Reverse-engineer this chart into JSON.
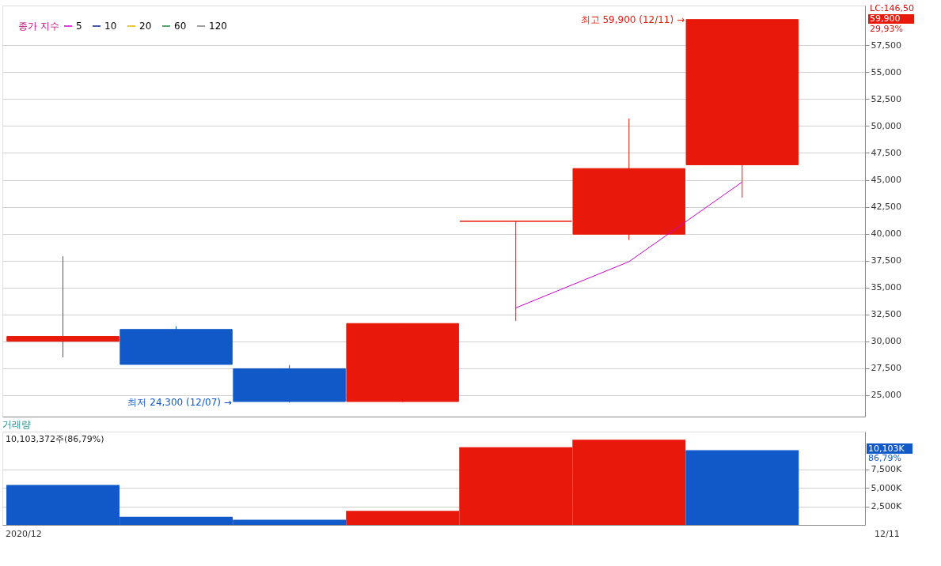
{
  "chart_data": [
    {
      "type": "candlestick",
      "categories": [
        null,
        null,
        null,
        null,
        null,
        null,
        null
      ],
      "ohlc": [
        [
          30000,
          37900,
          28500,
          30450
        ],
        [
          31100,
          31400,
          27850,
          27850
        ],
        [
          27450,
          27800,
          24300,
          24400
        ],
        [
          24400,
          31650,
          24350,
          31650
        ],
        [
          41150,
          41150,
          31900,
          41150
        ],
        [
          39950,
          50700,
          39400,
          46050
        ],
        [
          46400,
          59900,
          43350,
          59900
        ]
      ],
      "colors": [
        "#e8190a",
        "#1159c8",
        "#1159c8",
        "#e8190a",
        "#e8190a",
        "#e8190a",
        "#e8190a"
      ],
      "legend_title": "종가 지수",
      "series": [
        {
          "name": "5",
          "type": "line",
          "color": "#cc00cc",
          "values": [
            null,
            null,
            null,
            null,
            33100,
            37400,
            44800
          ]
        },
        {
          "name": "10",
          "type": "line",
          "color": "#0b1f8a",
          "values": [
            null,
            null,
            null,
            null,
            null,
            null,
            null
          ]
        },
        {
          "name": "20",
          "type": "line",
          "color": "#e0b000",
          "values": [
            null,
            null,
            null,
            null,
            null,
            null,
            null
          ]
        },
        {
          "name": "60",
          "type": "line",
          "color": "#1a8a3a",
          "values": [
            null,
            null,
            null,
            null,
            null,
            null,
            null
          ]
        },
        {
          "name": "120",
          "type": "line",
          "color": "#808080",
          "values": [
            null,
            null,
            null,
            null,
            null,
            null,
            null
          ]
        }
      ],
      "ylim": [
        23000,
        61200
      ],
      "yticks": [
        {
          "value": 25000,
          "label": "25,000"
        },
        {
          "value": 27500,
          "label": "27,500"
        },
        {
          "value": 30000,
          "label": "30,000"
        },
        {
          "value": 32500,
          "label": "32,500"
        },
        {
          "value": 35000,
          "label": "35,000"
        },
        {
          "value": 37500,
          "label": "37,500"
        },
        {
          "value": 40000,
          "label": "40,000"
        },
        {
          "value": 42500,
          "label": "42,500"
        },
        {
          "value": 45000,
          "label": "45,000"
        },
        {
          "value": 47500,
          "label": "47,500"
        },
        {
          "value": 50000,
          "label": "50,000"
        },
        {
          "value": 52500,
          "label": "52,500"
        },
        {
          "value": 55000,
          "label": "55,000"
        },
        {
          "value": 57500,
          "label": "57,500"
        }
      ],
      "grid": "y",
      "legend": "top left",
      "annotations": [
        "최고 59,900 (12/11) →",
        "최저 24,300 (12/07) →",
        "LC:146,50",
        "59,900",
        "29,93%"
      ]
    },
    {
      "type": "bar",
      "title": "거래량",
      "categories": [
        null,
        null,
        null,
        null,
        null,
        null,
        null
      ],
      "values": [
        5400,
        1100,
        700,
        1900,
        10500,
        11500,
        10103
      ],
      "colors": [
        "#1159c8",
        "#1159c8",
        "#1159c8",
        "#e8190a",
        "#e8190a",
        "#e8190a",
        "#1159c8"
      ],
      "ylim": [
        0,
        12600
      ],
      "yticks": [
        {
          "value": 2500,
          "label": "2,500K"
        },
        {
          "value": 5000,
          "label": "5,000K"
        },
        {
          "value": 7500,
          "label": "7,500K"
        }
      ],
      "grid": "y",
      "annotations": [
        "10,103,372주(86,79%)",
        "10,103K",
        "86,79%",
        "2020/12",
        "12/11"
      ]
    }
  ]
}
